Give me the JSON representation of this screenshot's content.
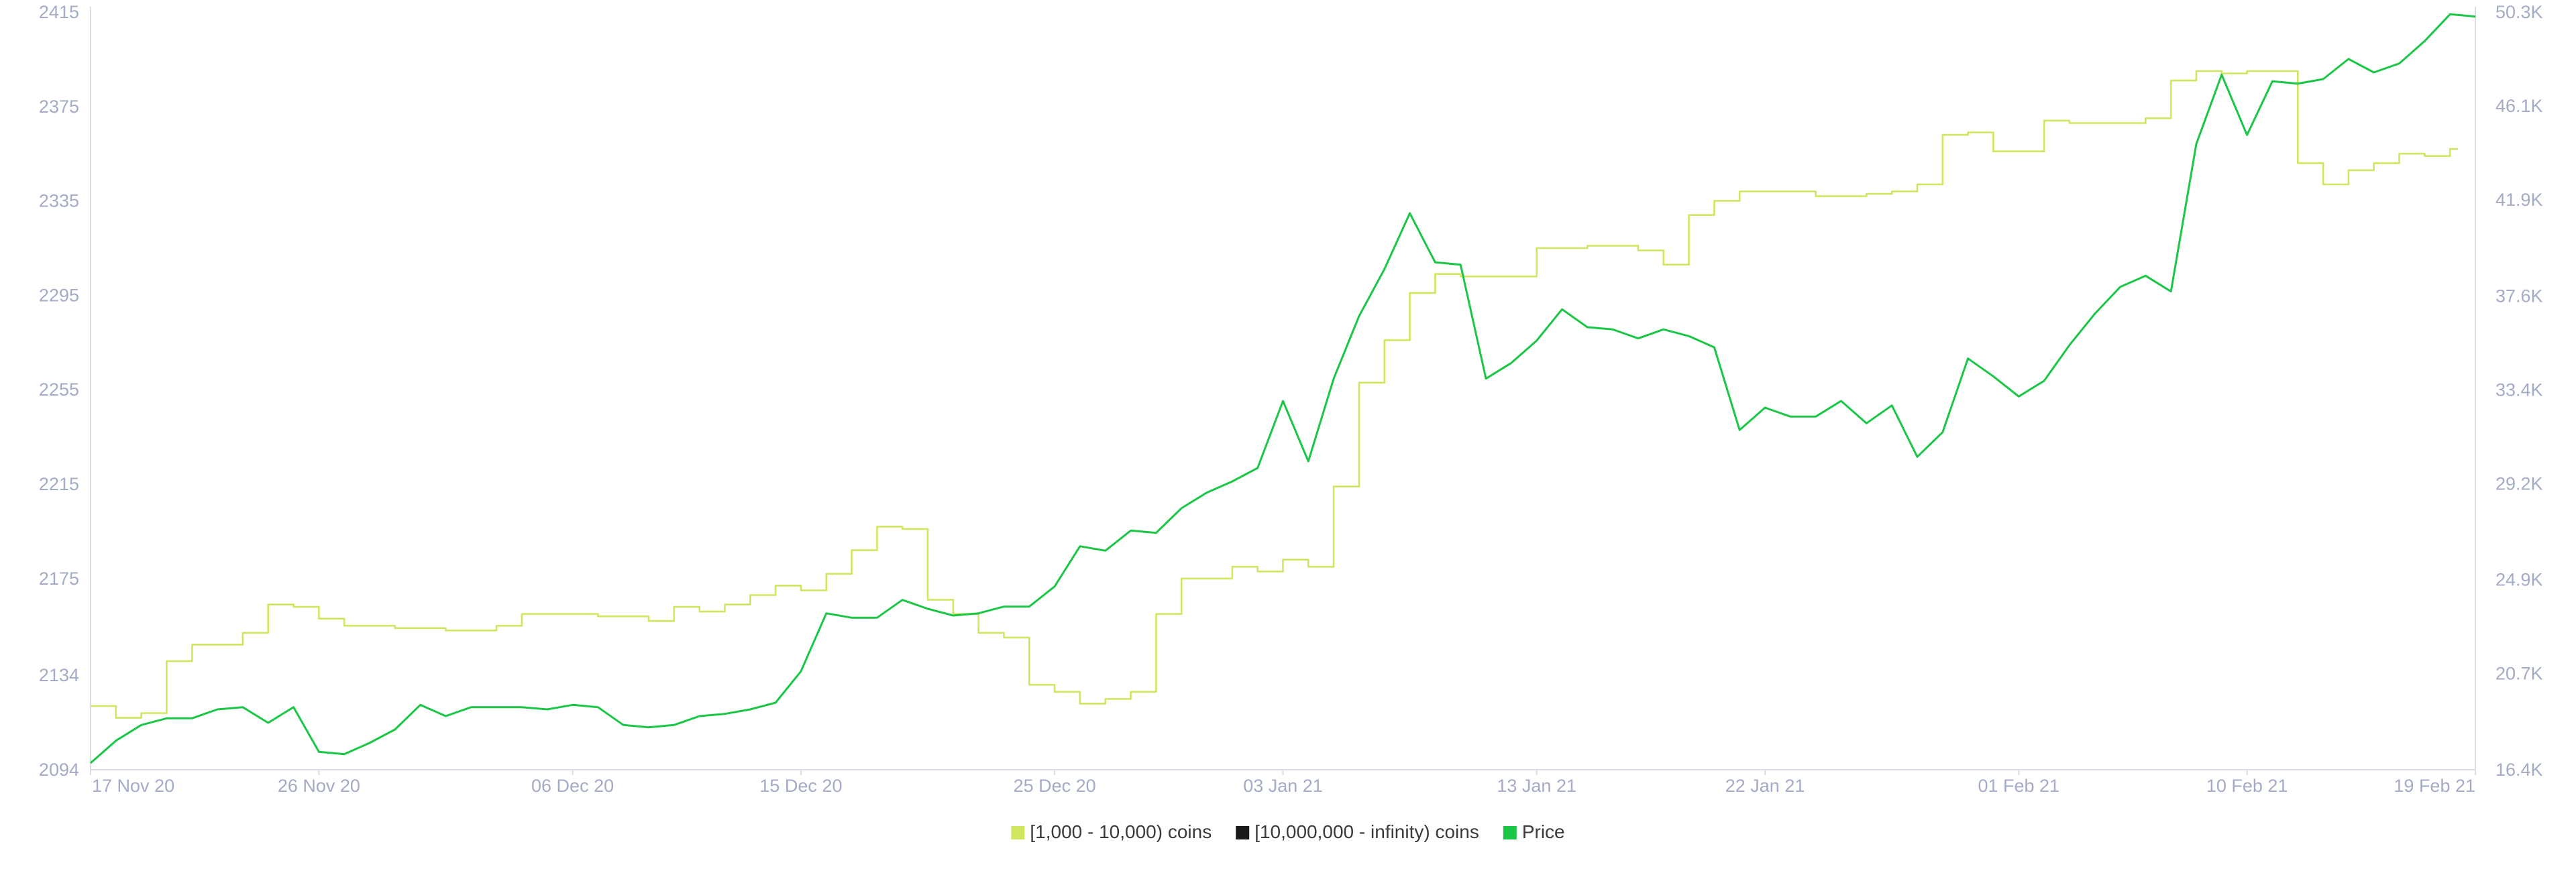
{
  "colors": {
    "holders_1k_10k": "#cfe65e",
    "holders_10m_inf": "#1a1a1a",
    "price": "#1bc646",
    "axis": "#d9dce8",
    "tick_text": "#a4abc6"
  },
  "chart_data": {
    "type": "line",
    "title": "",
    "xlabel": "",
    "ylabel_left": "",
    "ylabel_right": "",
    "left_axis": {
      "ylim": [
        2094,
        2415
      ],
      "ticks": [
        "2094",
        "2134",
        "2175",
        "2215",
        "2255",
        "2295",
        "2335",
        "2375",
        "2415"
      ],
      "tick_values": [
        2094,
        2134,
        2175,
        2215,
        2255,
        2295,
        2335,
        2375,
        2415
      ]
    },
    "right_axis": {
      "ylim": [
        16400,
        50300
      ],
      "ticks": [
        "16.4K",
        "20.7K",
        "24.9K",
        "29.2K",
        "33.4K",
        "37.6K",
        "41.9K",
        "46.1K",
        "50.3K"
      ],
      "tick_values": [
        16400,
        20700,
        24900,
        29200,
        33400,
        37600,
        41900,
        46100,
        50300
      ]
    },
    "x_axis": {
      "range": [
        "2020-11-17",
        "2021-02-19"
      ],
      "ticks": [
        "17 Nov 20",
        "26 Nov 20",
        "06 Dec 20",
        "15 Dec 20",
        "25 Dec 20",
        "03 Jan 21",
        "13 Jan 21",
        "22 Jan 21",
        "01 Feb 21",
        "10 Feb 21",
        "19 Feb 21"
      ],
      "tick_dates": [
        "2020-11-17",
        "2020-11-26",
        "2020-12-06",
        "2020-12-15",
        "2020-12-25",
        "2021-01-03",
        "2021-01-13",
        "2021-01-22",
        "2021-02-01",
        "2021-02-10",
        "2021-02-19"
      ]
    },
    "grid": false,
    "legend_placement": "bottom-center",
    "legend": [
      {
        "label": "[1,000 - 10,000) coins",
        "color": "#cfe65e"
      },
      {
        "label": "[10,000,000 - infinity) coins",
        "color": "#1a1a1a"
      },
      {
        "label": "Price",
        "color": "#1bc646"
      }
    ],
    "series": [
      {
        "name": "[1,000 - 10,000) coins",
        "axis": "left",
        "step": true,
        "color": "#cfe65e",
        "x": [
          "2020-11-17",
          "2020-11-18",
          "2020-11-19",
          "2020-11-20",
          "2020-11-21",
          "2020-11-22",
          "2020-11-23",
          "2020-11-24",
          "2020-11-25",
          "2020-11-26",
          "2020-11-27",
          "2020-11-28",
          "2020-11-29",
          "2020-12-01",
          "2020-12-03",
          "2020-12-04",
          "2020-12-05",
          "2020-12-07",
          "2020-12-09",
          "2020-12-10",
          "2020-12-11",
          "2020-12-12",
          "2020-12-13",
          "2020-12-14",
          "2020-12-15",
          "2020-12-16",
          "2020-12-17",
          "2020-12-18",
          "2020-12-19",
          "2020-12-20",
          "2020-12-21",
          "2020-12-22",
          "2020-12-23",
          "2020-12-24",
          "2020-12-25",
          "2020-12-26",
          "2020-12-27",
          "2020-12-28",
          "2020-12-29",
          "2020-12-30",
          "2020-12-31",
          "2021-01-01",
          "2021-01-02",
          "2021-01-03",
          "2021-01-04",
          "2021-01-05",
          "2021-01-06",
          "2021-01-07",
          "2021-01-08",
          "2021-01-09",
          "2021-01-10",
          "2021-01-11",
          "2021-01-12",
          "2021-01-13",
          "2021-01-15",
          "2021-01-17",
          "2021-01-18",
          "2021-01-19",
          "2021-01-20",
          "2021-01-21",
          "2021-01-22",
          "2021-01-24",
          "2021-01-26",
          "2021-01-27",
          "2021-01-28",
          "2021-01-29",
          "2021-01-30",
          "2021-01-31",
          "2021-02-02",
          "2021-02-03",
          "2021-02-04",
          "2021-02-05",
          "2021-02-06",
          "2021-02-07",
          "2021-02-08",
          "2021-02-09",
          "2021-02-10",
          "2021-02-11",
          "2021-02-12",
          "2021-02-13",
          "2021-02-14",
          "2021-02-15",
          "2021-02-16",
          "2021-02-17",
          "2021-02-18"
        ],
        "values": [
          2121,
          2116,
          2118,
          2140,
          2147,
          2147,
          2152,
          2164,
          2163,
          2158,
          2155,
          2155,
          2154,
          2153,
          2155,
          2160,
          2160,
          2159,
          2157,
          2163,
          2161,
          2164,
          2168,
          2172,
          2170,
          2177,
          2187,
          2197,
          2196,
          2166,
          2160,
          2152,
          2150,
          2130,
          2127,
          2122,
          2124,
          2127,
          2160,
          2175,
          2175,
          2180,
          2178,
          2183,
          2180,
          2214,
          2258,
          2276,
          2296,
          2304,
          2303,
          2303,
          2303,
          2315,
          2316,
          2314,
          2308,
          2329,
          2335,
          2339,
          2339,
          2337,
          2338,
          2339,
          2342,
          2363,
          2364,
          2356,
          2369,
          2368,
          2368,
          2368,
          2370,
          2386,
          2390,
          2389,
          2390,
          2390,
          2351,
          2342,
          2348,
          2351,
          2355,
          2354,
          2357
        ]
      },
      {
        "name": "[10,000,000 - infinity) coins",
        "axis": "left",
        "step": true,
        "color": "#1a1a1a",
        "x": [],
        "values": []
      },
      {
        "name": "Price",
        "axis": "right",
        "step": false,
        "color": "#1bc646",
        "x": [
          "2020-11-17",
          "2020-11-18",
          "2020-11-19",
          "2020-11-20",
          "2020-11-21",
          "2020-11-22",
          "2020-11-23",
          "2020-11-24",
          "2020-11-25",
          "2020-11-26",
          "2020-11-27",
          "2020-11-28",
          "2020-11-29",
          "2020-11-30",
          "2020-12-01",
          "2020-12-02",
          "2020-12-03",
          "2020-12-04",
          "2020-12-05",
          "2020-12-06",
          "2020-12-07",
          "2020-12-08",
          "2020-12-09",
          "2020-12-10",
          "2020-12-11",
          "2020-12-12",
          "2020-12-13",
          "2020-12-14",
          "2020-12-15",
          "2020-12-16",
          "2020-12-17",
          "2020-12-18",
          "2020-12-19",
          "2020-12-20",
          "2020-12-21",
          "2020-12-22",
          "2020-12-23",
          "2020-12-24",
          "2020-12-25",
          "2020-12-26",
          "2020-12-27",
          "2020-12-28",
          "2020-12-29",
          "2020-12-30",
          "2020-12-31",
          "2021-01-01",
          "2021-01-02",
          "2021-01-03",
          "2021-01-04",
          "2021-01-05",
          "2021-01-06",
          "2021-01-07",
          "2021-01-08",
          "2021-01-09",
          "2021-01-10",
          "2021-01-11",
          "2021-01-12",
          "2021-01-13",
          "2021-01-14",
          "2021-01-15",
          "2021-01-16",
          "2021-01-17",
          "2021-01-18",
          "2021-01-19",
          "2021-01-20",
          "2021-01-21",
          "2021-01-22",
          "2021-01-23",
          "2021-01-24",
          "2021-01-25",
          "2021-01-26",
          "2021-01-27",
          "2021-01-28",
          "2021-01-29",
          "2021-01-30",
          "2021-01-31",
          "2021-02-01",
          "2021-02-02",
          "2021-02-03",
          "2021-02-04",
          "2021-02-05",
          "2021-02-06",
          "2021-02-07",
          "2021-02-08",
          "2021-02-09",
          "2021-02-10",
          "2021-02-11",
          "2021-02-12",
          "2021-02-13",
          "2021-02-14",
          "2021-02-15",
          "2021-02-16",
          "2021-02-17",
          "2021-02-18",
          "2021-02-19"
        ],
        "values": [
          16700,
          17700,
          18400,
          18700,
          18700,
          19100,
          19200,
          18500,
          19200,
          17200,
          17100,
          17600,
          18200,
          19300,
          18800,
          19200,
          19200,
          19200,
          19100,
          19300,
          19200,
          18400,
          18300,
          18400,
          18800,
          18900,
          19100,
          19400,
          20800,
          23400,
          23200,
          23200,
          24000,
          23600,
          23300,
          23400,
          23700,
          23700,
          24600,
          26400,
          26200,
          27100,
          27000,
          28100,
          28800,
          29300,
          29900,
          32900,
          30200,
          33900,
          36700,
          38800,
          41300,
          39100,
          39000,
          33900,
          34600,
          35600,
          37000,
          36200,
          36100,
          35700,
          36100,
          35800,
          35300,
          31600,
          32600,
          32200,
          32200,
          32900,
          31900,
          32700,
          30400,
          31500,
          34800,
          34000,
          33100,
          33800,
          35400,
          36800,
          38000,
          38500,
          37800,
          44400,
          47500,
          44800,
          47200,
          47100,
          47300,
          48200,
          47600,
          48000,
          49000,
          50200,
          50100
        ]
      }
    ]
  }
}
